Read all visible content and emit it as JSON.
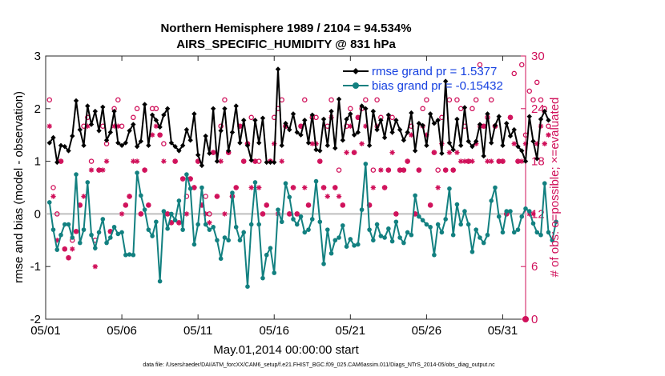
{
  "chart_data": {
    "type": "line",
    "title": "Northern Hemisphere 1989 / 2104 = 94.534%",
    "subtitle": "AIRS_SPECIFIC_HUMIDITY @ 831 hPa",
    "xlabel": "May.01,2014 00:00:00 start",
    "ylabel": "rmse and bias (model - observation)",
    "ylabel_right": "# of obs: o=possible; ×=evaluated",
    "footnote": "data file: /Users/raeder/DAI/ATM_forcXX/CAM6_setup/f.e21.FHIST_BGC.f09_025.CAM6assim.011/Diags_NTrS_2014-05/obs_diag_output.nc",
    "xlim": [
      0,
      31.5
    ],
    "ylim": [
      -2,
      3
    ],
    "ylim_right": [
      0,
      30
    ],
    "x_ticks": [
      0,
      5,
      10,
      15,
      20,
      25,
      30
    ],
    "x_tick_labels": [
      "05/01",
      "05/06",
      "05/11",
      "05/16",
      "05/21",
      "05/26",
      "05/31"
    ],
    "y_ticks": [
      -2,
      -1,
      0,
      1,
      2,
      3
    ],
    "y_tick_labels": [
      "-2",
      "-1",
      "0",
      "1",
      "2",
      "3"
    ],
    "y_ticks_right": [
      0,
      6,
      12,
      18,
      24,
      30
    ],
    "y_tick_labels_right": [
      "0",
      "6",
      "12",
      "18",
      "24",
      "30"
    ],
    "x_step": 0.25,
    "colors": {
      "rmse": "#000000",
      "bias": "#128080",
      "obs": "#d0105a",
      "legend_text": "#1540e0",
      "zero_line": "#bfbfbf"
    },
    "series": [
      {
        "name": "rmse grand pr = 1.5377",
        "axis": "left",
        "values": [
          1.35,
          1.45,
          0.98,
          1.3,
          1.28,
          1.2,
          1.48,
          2.15,
          1.6,
          1.3,
          2.05,
          1.7,
          1.95,
          1.58,
          2.03,
          1.4,
          1.55,
          1.95,
          1.35,
          1.3,
          1.35,
          1.58,
          1.7,
          1.28,
          1.38,
          2.08,
          1.3,
          1.88,
          1.78,
          1.65,
          1.88,
          2.0,
          1.35,
          1.28,
          1.2,
          1.3,
          1.6,
          1.4,
          1.9,
          1.12,
          0.92,
          1.48,
          1.15,
          2.0,
          1.0,
          1.58,
          2.0,
          1.2,
          1.55,
          2.05,
          1.35,
          1.78,
          1.3,
          1.02,
          1.78,
          1.35,
          1.82,
          0.98,
          0.98,
          0.98,
          2.75,
          1.3,
          1.72,
          1.6,
          1.9,
          1.55,
          1.5,
          1.78,
          1.35,
          1.88,
          1.22,
          1.2,
          1.8,
          1.3,
          1.95,
          1.25,
          2.18,
          1.4,
          1.8,
          1.9,
          1.5,
          1.55,
          2.05,
          2.0,
          1.3,
          1.95,
          1.6,
          1.78,
          1.45,
          1.88,
          1.55,
          1.78,
          1.6,
          1.4,
          1.55,
          1.92,
          1.2,
          1.72,
          1.68,
          1.3,
          1.9,
          1.72,
          1.78,
          1.15,
          2.52,
          1.35,
          1.22,
          1.8,
          1.3,
          2.02,
          1.38,
          1.28,
          1.38,
          1.7,
          1.1,
          1.9,
          1.35,
          1.68,
          1.85,
          1.3,
          1.72,
          1.48,
          1.6,
          1.28,
          1.2,
          1.0,
          1.85,
          1.38,
          1.05,
          1.8,
          1.95,
          1.78
        ]
      },
      {
        "name": "bias grand pr = -0.15432",
        "axis": "left",
        "values": [
          0.22,
          -0.3,
          -0.68,
          -0.4,
          -0.2,
          -0.2,
          -0.45,
          0.75,
          -0.55,
          -0.3,
          0.6,
          -0.4,
          -0.65,
          -0.35,
          -0.1,
          -0.55,
          -0.45,
          -0.25,
          -0.38,
          -0.35,
          -0.78,
          -0.77,
          -0.78,
          0.78,
          0.35,
          0.08,
          -0.3,
          -0.42,
          -0.15,
          -1.28,
          0.05,
          -0.28,
          0.0,
          -0.12,
          0.25,
          -0.3,
          0.75,
          0.48,
          -0.58,
          -0.2,
          0.5,
          -0.2,
          -0.3,
          -0.25,
          -0.5,
          -0.85,
          -0.45,
          -0.5,
          0.4,
          -0.25,
          -0.5,
          -0.35,
          -1.38,
          -0.2,
          0.6,
          -0.2,
          -1.22,
          -0.78,
          -0.65,
          -1.12,
          0.08,
          -0.15,
          0.58,
          0.32,
          -0.1,
          -0.2,
          -0.05,
          -0.35,
          -0.3,
          -0.1,
          0.62,
          -0.15,
          -0.95,
          -0.3,
          -0.75,
          -0.5,
          -0.45,
          -0.22,
          -0.62,
          -0.48,
          -0.6,
          -0.58,
          0.08,
          0.95,
          -0.3,
          -0.5,
          -0.2,
          -0.42,
          -0.45,
          -0.28,
          -0.52,
          -0.15,
          -0.45,
          -0.55,
          -0.35,
          -0.4,
          0.35,
          -0.05,
          -0.12,
          -0.2,
          -0.25,
          -0.78,
          -0.2,
          -0.35,
          -0.1,
          0.48,
          -0.4,
          0.18,
          -0.2,
          0.05,
          -0.2,
          -0.72,
          -0.3,
          -0.45,
          -0.55,
          -0.4,
          0.25,
          0.5,
          -0.05,
          -0.35,
          0.05,
          0.05,
          -0.35,
          -0.3,
          -0.05,
          0.1,
          0.05,
          -0.18,
          -0.35,
          -0.4,
          0.58,
          -0.35,
          -0.5,
          -0.15
        ]
      },
      {
        "name": "possible",
        "axis": "right",
        "marker": "o",
        "values": [
          25,
          15,
          12,
          18,
          8,
          7,
          9,
          10,
          13,
          22,
          23,
          18,
          9,
          17,
          22,
          20,
          10,
          24,
          25,
          22,
          13,
          14,
          23,
          24,
          12,
          17,
          13,
          24,
          24,
          21,
          20,
          12,
          11,
          18,
          11,
          16,
          14,
          16,
          15,
          18,
          13,
          14,
          12,
          19,
          14,
          22,
          25,
          19,
          14,
          15,
          22,
          18,
          20,
          23,
          18,
          18,
          12,
          13,
          18,
          23,
          24,
          25,
          22,
          12,
          15,
          12,
          22,
          25,
          13,
          23,
          23,
          18,
          15,
          22,
          25,
          15,
          17,
          13,
          22,
          24,
          19,
          23,
          24,
          25,
          13,
          17,
          25,
          23,
          15,
          17,
          23,
          12,
          17,
          17,
          18,
          22,
          12,
          17,
          24,
          25,
          13,
          19,
          17,
          23,
          17,
          25,
          17,
          25,
          24,
          22,
          18,
          24,
          25,
          29,
          22,
          23,
          25,
          22,
          18,
          18,
          12,
          23,
          28,
          18,
          29,
          21,
          26,
          25,
          27,
          25,
          24,
          22
        ]
      },
      {
        "name": "evaluated",
        "axis": "right",
        "marker": "x",
        "values": [
          22,
          14,
          9,
          18,
          8,
          7,
          8,
          10,
          13,
          14,
          22,
          17,
          6,
          17,
          17,
          18,
          10,
          22,
          22,
          12,
          13,
          14,
          18,
          18,
          12,
          17,
          13,
          21,
          22,
          21,
          18,
          12,
          11,
          18,
          11,
          16,
          12,
          16,
          15,
          18,
          13,
          12,
          11,
          19,
          14,
          18,
          12,
          19,
          14,
          15,
          22,
          18,
          20,
          15,
          18,
          15,
          12,
          13,
          18,
          20,
          12,
          18,
          22,
          12,
          15,
          12,
          22,
          15,
          13,
          20,
          20,
          18,
          15,
          14,
          23,
          15,
          14,
          13,
          19,
          22,
          19,
          23,
          20,
          22,
          13,
          15,
          22,
          17,
          15,
          17,
          19,
          12,
          17,
          17,
          18,
          21,
          12,
          17,
          22,
          21,
          13,
          19,
          15,
          20,
          17,
          19,
          17,
          19,
          18,
          18,
          18,
          18,
          20,
          22,
          22,
          18,
          18,
          22,
          18,
          18,
          12,
          23,
          20,
          18,
          18,
          20,
          12,
          12,
          20,
          22,
          20,
          21
        ]
      }
    ]
  }
}
